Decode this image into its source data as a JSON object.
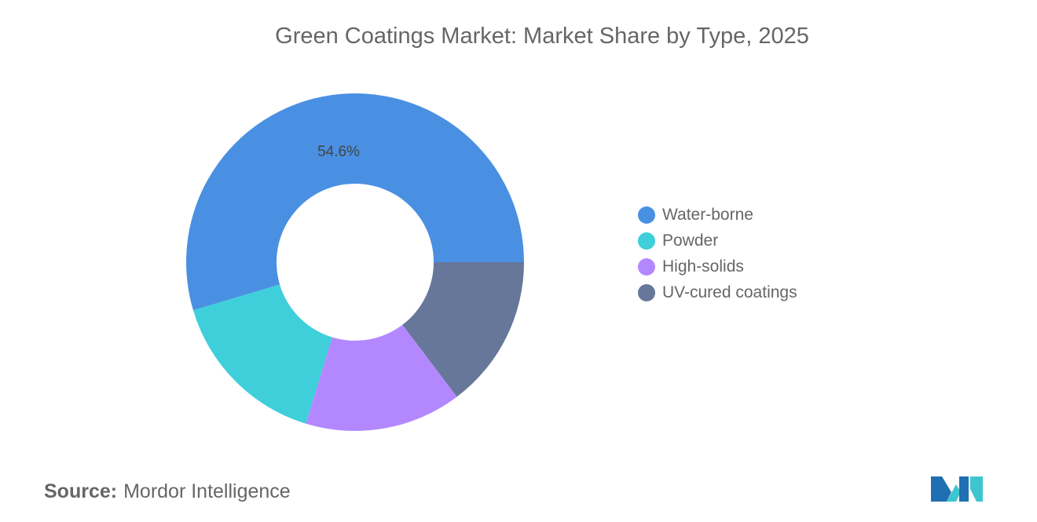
{
  "title": "Green Coatings Market: Market Share by Type, 2025",
  "chart_data": {
    "type": "pie",
    "donut": true,
    "title": "Green Coatings Market: Market Share by Type, 2025",
    "categories": [
      "Water-borne",
      "Powder",
      "High-solids",
      "UV-cured coatings"
    ],
    "values": [
      54.6,
      15.7,
      15.0,
      14.7
    ],
    "colors": [
      "#4A90E2",
      "#3ECFDB",
      "#B388FF",
      "#66779A"
    ],
    "data_labels": [
      "54.6%",
      "",
      "",
      ""
    ],
    "legend_position": "right"
  },
  "source": {
    "label": "Source:",
    "value": "Mordor Intelligence"
  }
}
